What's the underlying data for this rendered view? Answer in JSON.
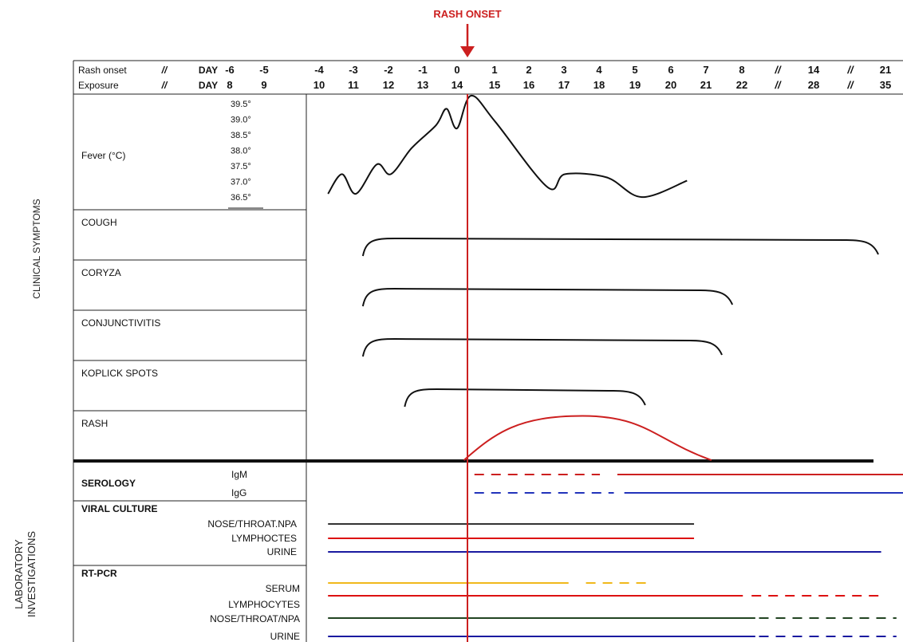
{
  "rash_onset_marker": "RASH ONSET",
  "side_labels": {
    "clinical": "CLINICAL SYMPTOMS",
    "lab_line1": "LABORATORY",
    "lab_line2": "INVESTIGATIONS"
  },
  "header": {
    "row1_label": "Rash onset",
    "row2_label": "Exposure",
    "day_word": "DAY",
    "gap_mark": "//",
    "rash_days": [
      "-6",
      "-5",
      "-4",
      "-3",
      "-2",
      "-1",
      "0",
      "1",
      "2",
      "3",
      "4",
      "5",
      "6",
      "7",
      "8",
      "//",
      "14",
      "//",
      "21"
    ],
    "exposure_days": [
      "8",
      "9",
      "10",
      "11",
      "12",
      "13",
      "14",
      "15",
      "16",
      "17",
      "18",
      "19",
      "20",
      "21",
      "22",
      "//",
      "28",
      "//",
      "35"
    ]
  },
  "fever": {
    "label": "Fever (°C)",
    "temps": [
      "39.5°",
      "39.0°",
      "38.5°",
      "38.0°",
      "37.5°",
      "37.0°",
      "36.5°"
    ],
    "curve": [
      {
        "day": -4.0,
        "temp": 36.6
      },
      {
        "day": -3.6,
        "temp": 37.2
      },
      {
        "day": -3.2,
        "temp": 36.6
      },
      {
        "day": -2.6,
        "temp": 37.5
      },
      {
        "day": -2.2,
        "temp": 37.2
      },
      {
        "day": -1.6,
        "temp": 38.0
      },
      {
        "day": -0.9,
        "temp": 38.7
      },
      {
        "day": -0.6,
        "temp": 39.2
      },
      {
        "day": -0.3,
        "temp": 38.6
      },
      {
        "day": 0.1,
        "temp": 39.6
      },
      {
        "day": 0.8,
        "temp": 38.8
      },
      {
        "day": 2.3,
        "temp": 36.8
      },
      {
        "day": 2.8,
        "temp": 37.2
      },
      {
        "day": 4.0,
        "temp": 37.1
      },
      {
        "day": 5.0,
        "temp": 36.5
      },
      {
        "day": 6.3,
        "temp": 37.0
      }
    ]
  },
  "symptoms": [
    {
      "key": "cough",
      "label": "COUGH",
      "start": -3,
      "end": 20,
      "color": "#111111"
    },
    {
      "key": "coryza",
      "label": "CORYZA",
      "start": -3,
      "end": 7.6,
      "color": "#111111"
    },
    {
      "key": "conjunctivitis",
      "label": "CONJUNCTIVITIS",
      "start": -3,
      "end": 7.3,
      "color": "#111111"
    },
    {
      "key": "koplick",
      "label": "KOPLICK SPOTS",
      "start": -1.8,
      "end": 5.1,
      "color": "#111111"
    }
  ],
  "rash": {
    "label": "RASH",
    "start": -0.1,
    "peak": 3.3,
    "end": 7.0,
    "peak_level": 0.88,
    "color": "#cc1f1f"
  },
  "lab": {
    "serology": {
      "title": "SEROLOGY",
      "rows": [
        {
          "key": "igm",
          "label": "IgM",
          "dashed": [
            0.2,
            3.8
          ],
          "solid": [
            4.3,
            21.9
          ],
          "color": "#cc1f1f"
        },
        {
          "key": "igg",
          "label": "IgG",
          "dashed": [
            0.2,
            4.2
          ],
          "solid": [
            4.5,
            21.9
          ],
          "color": "#2233bb"
        }
      ]
    },
    "viral_culture": {
      "title": "VIRAL CULTURE",
      "rows": [
        {
          "key": "npa",
          "label": "NOSE/THROAT.NPA",
          "solid": [
            -4,
            6.5
          ],
          "color": "#333333"
        },
        {
          "key": "lymph",
          "label": "LYMPHOCTES",
          "solid": [
            -4,
            6.5
          ],
          "color": "#dd1111"
        },
        {
          "key": "urine",
          "label": "URINE",
          "solid": [
            -4,
            20.3
          ],
          "color": "#1a1aa0"
        }
      ]
    },
    "rt_pcr": {
      "title": "RT-PCR",
      "rows": [
        {
          "key": "serum",
          "label": "SERUM",
          "solid": [
            -4,
            2.9
          ],
          "dashed": [
            3.4,
            5.3
          ],
          "color": "#f0b81c"
        },
        {
          "key": "lymphocytes",
          "label": "LYMPHOCYTES",
          "solid": [
            -4,
            7.9
          ],
          "dashed": [
            8.4,
            20.5
          ],
          "color": "#dd1111"
        },
        {
          "key": "npa2",
          "label": "NOSE/THROAT/NPA",
          "solid": [
            -4,
            8.7
          ],
          "dashed": [
            9.0,
            21.9
          ],
          "color": "#224422"
        },
        {
          "key": "urine2",
          "label": "URINE",
          "solid": [
            -4,
            8.7
          ],
          "dashed": [
            9.0,
            21.9
          ],
          "color": "#1a1aa0"
        }
      ]
    }
  },
  "colors": {
    "rash_line": "#cc1f1f",
    "grid": "#222222"
  }
}
